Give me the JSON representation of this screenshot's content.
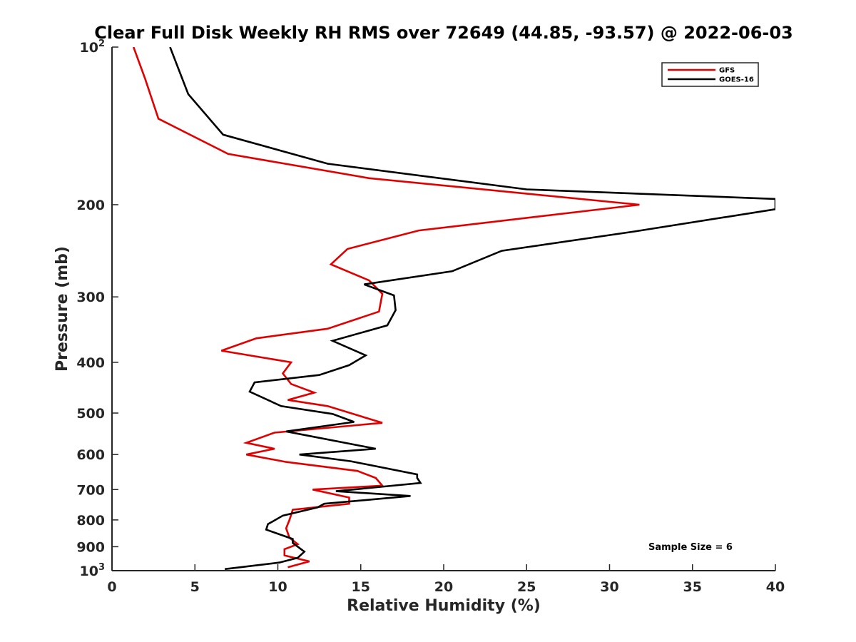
{
  "chart_data": {
    "type": "line",
    "title": "Clear Full Disk Weekly RH RMS over 72649 (44.85, -93.57) @ 2022-06-03",
    "xlabel": "Relative Humidity (%)",
    "ylabel": "Pressure (mb)",
    "xlim": [
      0,
      40
    ],
    "ylim": [
      1000,
      100
    ],
    "y_scale": "log",
    "x_ticks": [
      "0",
      "5",
      "10",
      "15",
      "20",
      "25",
      "30",
      "35",
      "40"
    ],
    "y_ticks": [
      {
        "value": 100,
        "base": "10",
        "exp": "2"
      },
      {
        "value": 200,
        "label": "200"
      },
      {
        "value": 300,
        "label": "300"
      },
      {
        "value": 400,
        "label": "400"
      },
      {
        "value": 500,
        "label": "500"
      },
      {
        "value": 600,
        "label": "600"
      },
      {
        "value": 700,
        "label": "700"
      },
      {
        "value": 800,
        "label": "800"
      },
      {
        "value": 900,
        "label": "900"
      },
      {
        "value": 1000,
        "base": "10",
        "exp": "3"
      }
    ],
    "legend_position": "top-right",
    "annotation": "Sample Size = 6",
    "series": [
      {
        "name": "GFS",
        "color": "#e00000",
        "points": [
          [
            1.3,
            100
          ],
          [
            2.0,
            115
          ],
          [
            2.8,
            137
          ],
          [
            7.0,
            160
          ],
          [
            15.5,
            178
          ],
          [
            31.8,
            200
          ],
          [
            18.5,
            224
          ],
          [
            14.2,
            243
          ],
          [
            13.2,
            260
          ],
          [
            15.5,
            279
          ],
          [
            16.3,
            296
          ],
          [
            16.1,
            320
          ],
          [
            13.0,
            345
          ],
          [
            8.7,
            360
          ],
          [
            6.6,
            380
          ],
          [
            10.8,
            400
          ],
          [
            10.3,
            420
          ],
          [
            10.8,
            440
          ],
          [
            12.2,
            457
          ],
          [
            10.6,
            472
          ],
          [
            13.0,
            485
          ],
          [
            16.3,
            522
          ],
          [
            9.8,
            545
          ],
          [
            8.1,
            570
          ],
          [
            9.8,
            585
          ],
          [
            8.1,
            600
          ],
          [
            10.5,
            620
          ],
          [
            14.8,
            645
          ],
          [
            15.9,
            665
          ],
          [
            16.3,
            688
          ],
          [
            12.1,
            700
          ],
          [
            14.3,
            725
          ],
          [
            14.3,
            745
          ],
          [
            10.9,
            765
          ],
          [
            10.7,
            800
          ],
          [
            10.5,
            830
          ],
          [
            10.7,
            865
          ],
          [
            11.2,
            890
          ],
          [
            10.4,
            910
          ],
          [
            10.4,
            935
          ],
          [
            11.9,
            960
          ],
          [
            10.6,
            985
          ]
        ]
      },
      {
        "name": "GOES-16",
        "color": "#000000",
        "points": [
          [
            3.5,
            100
          ],
          [
            4.6,
            123
          ],
          [
            6.7,
            147
          ],
          [
            13.0,
            167
          ],
          [
            25.0,
            187
          ],
          [
            40.0,
            195
          ],
          [
            40.0,
            204
          ],
          [
            31.5,
            225
          ],
          [
            23.5,
            245
          ],
          [
            20.5,
            268
          ],
          [
            15.2,
            284
          ],
          [
            17.0,
            298
          ],
          [
            17.1,
            318
          ],
          [
            16.6,
            340
          ],
          [
            13.3,
            364
          ],
          [
            15.3,
            388
          ],
          [
            14.3,
            405
          ],
          [
            12.5,
            423
          ],
          [
            8.6,
            437
          ],
          [
            8.3,
            455
          ],
          [
            10.2,
            485
          ],
          [
            13.3,
            502
          ],
          [
            14.6,
            520
          ],
          [
            10.5,
            542
          ],
          [
            15.9,
            585
          ],
          [
            11.3,
            600
          ],
          [
            14.4,
            618
          ],
          [
            18.4,
            655
          ],
          [
            18.4,
            665
          ],
          [
            18.6,
            680
          ],
          [
            13.5,
            705
          ],
          [
            18.0,
            720
          ],
          [
            12.8,
            745
          ],
          [
            12.4,
            757
          ],
          [
            10.3,
            785
          ],
          [
            9.4,
            815
          ],
          [
            9.3,
            835
          ],
          [
            10.9,
            870
          ],
          [
            10.9,
            885
          ],
          [
            11.6,
            920
          ],
          [
            11.2,
            945
          ],
          [
            10.1,
            965
          ],
          [
            6.8,
            993
          ]
        ]
      }
    ]
  }
}
